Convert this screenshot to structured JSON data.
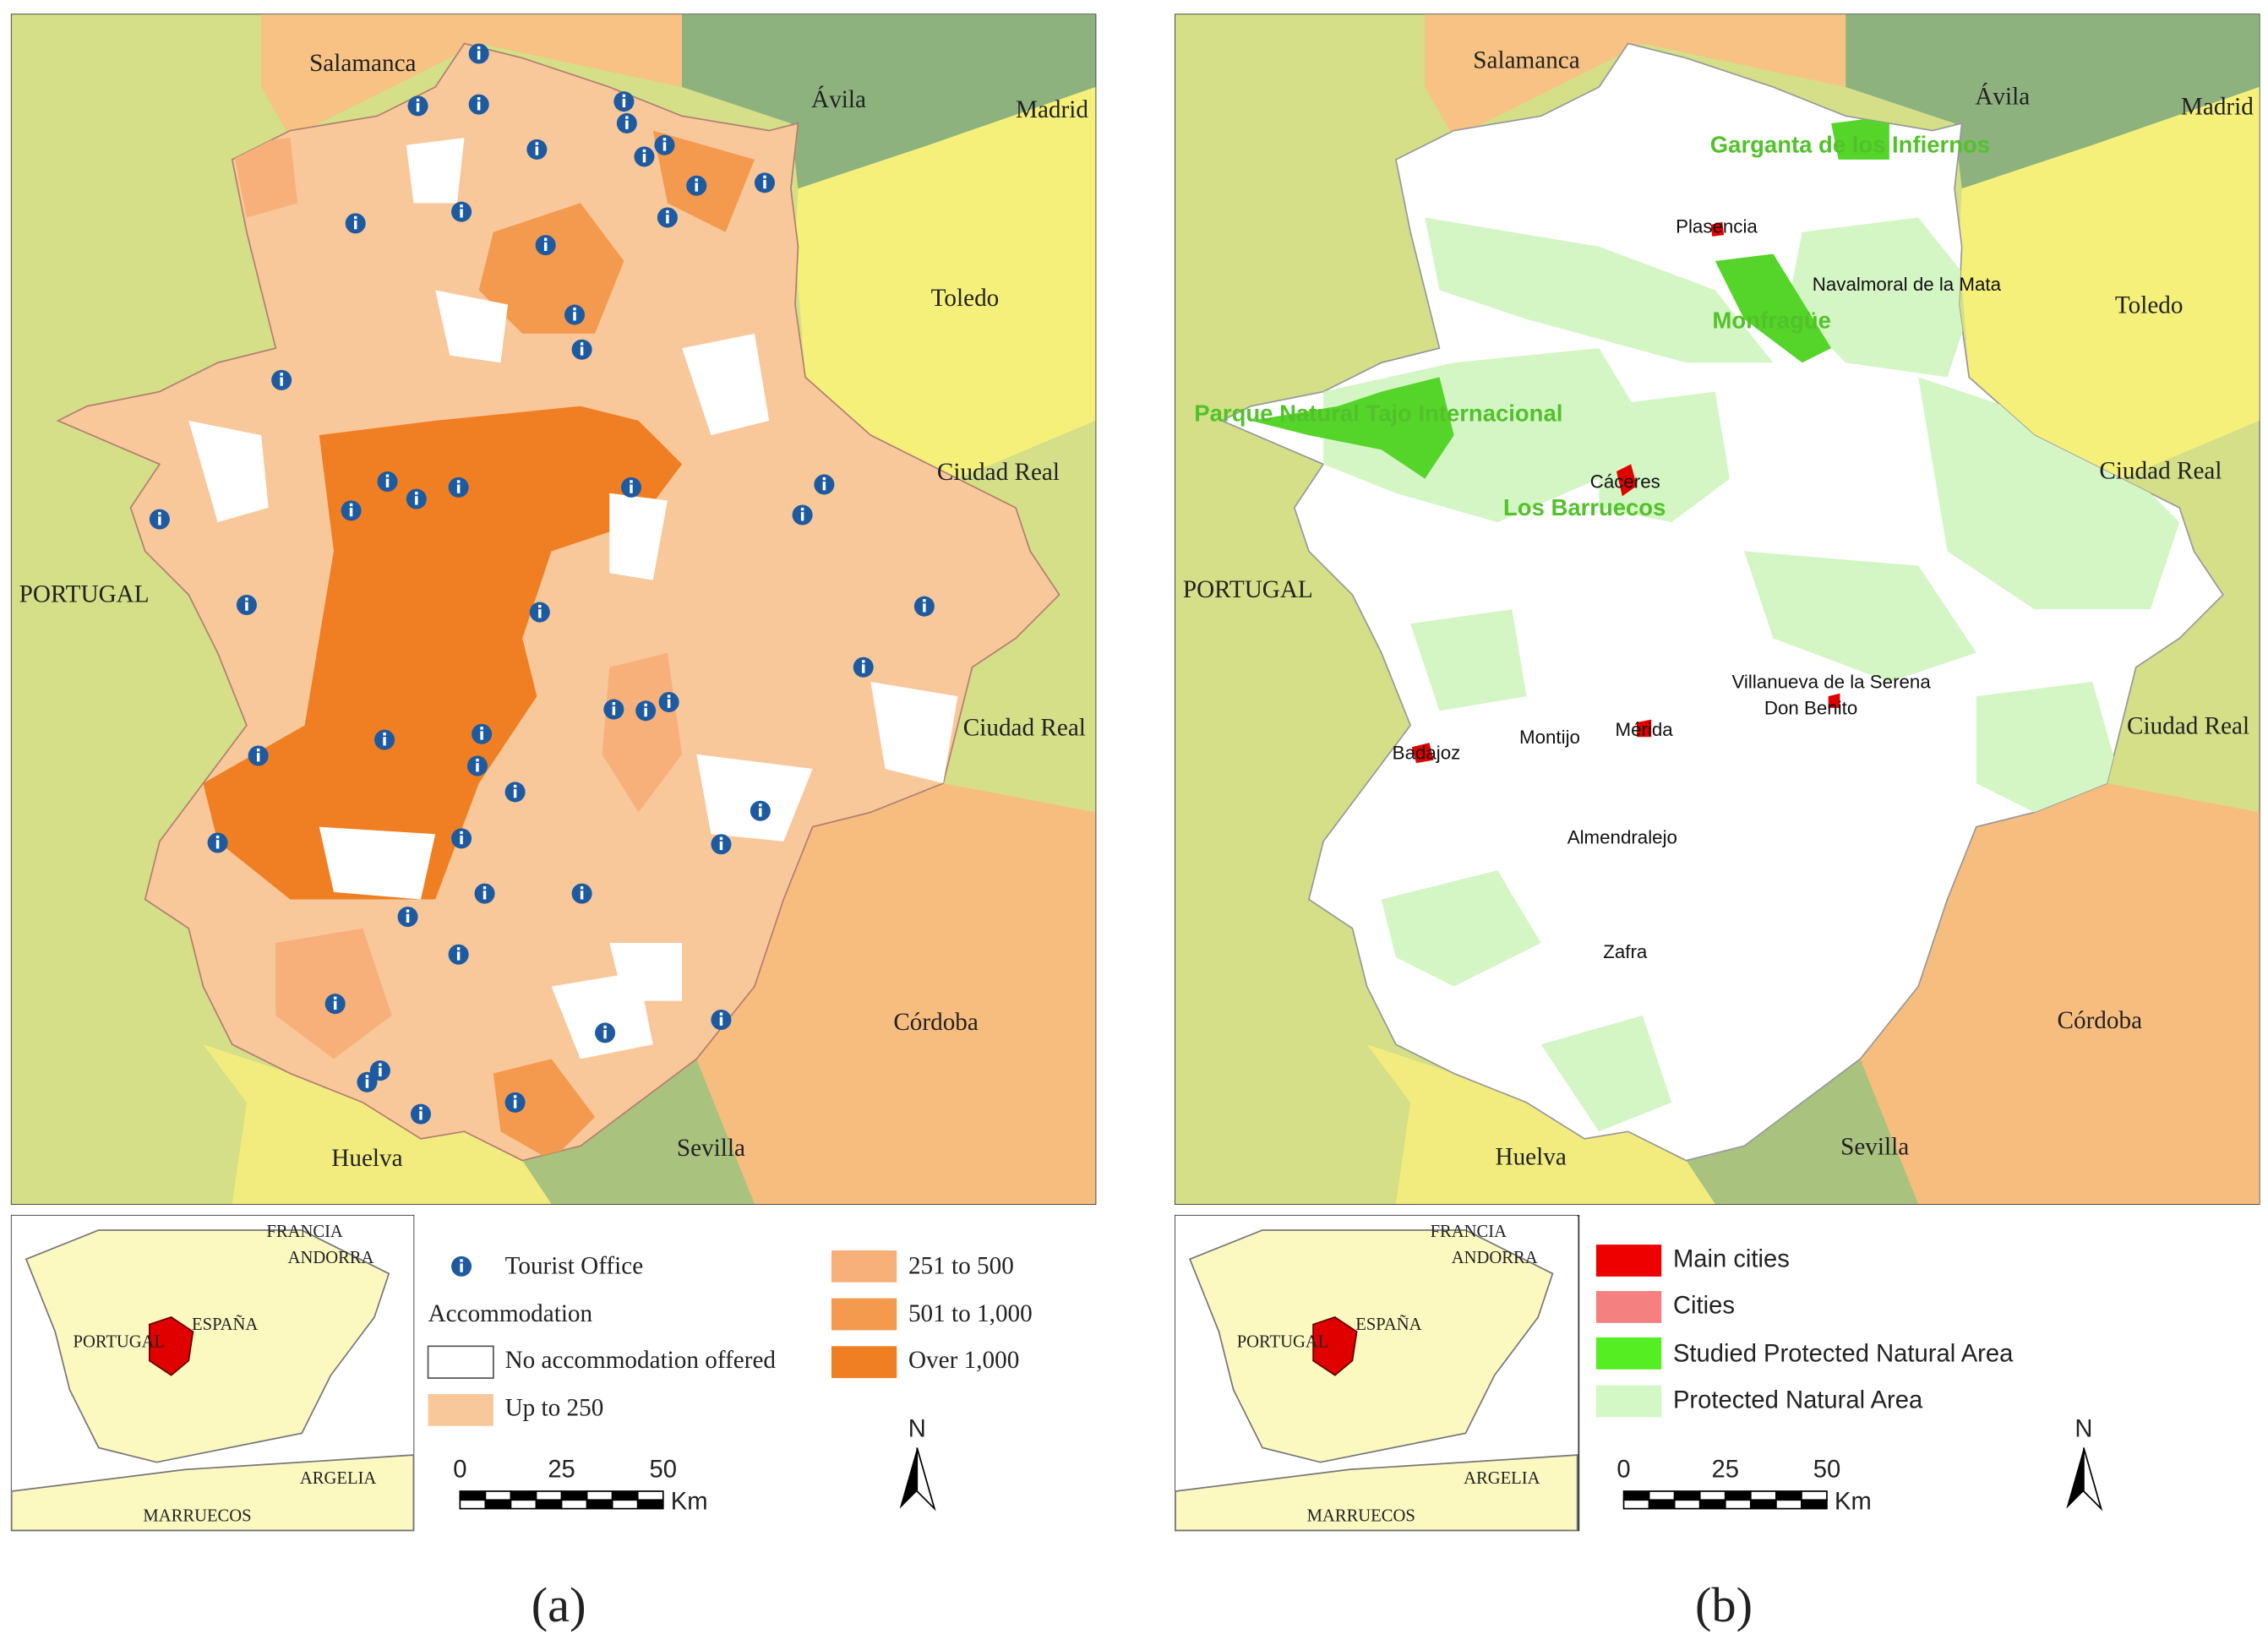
{
  "panels": [
    {
      "neighbors": [
        "Salamanca",
        "Ávila",
        "Madrid",
        "Toledo",
        "Ciudad Real",
        "PORTUGAL",
        "Ciudad Real",
        "Córdoba",
        "Sevilla",
        "Huelva"
      ],
      "inset_labels": [
        "FRANCIA",
        "ANDORRA",
        "ESPAÑA",
        "PORTUGAL",
        "ARGELIA",
        "MARRUECOS"
      ],
      "legend": {
        "tourist_office": "Tourist Office",
        "accommodation": "Accommodation",
        "classes": [
          "No accommodation offered",
          "Up to 250",
          "251 to 500",
          "501 to 1,000",
          "Over 1,000"
        ]
      },
      "scale": {
        "ticks": [
          "0",
          "25",
          "50"
        ],
        "unit": "Km"
      },
      "north": "N",
      "caption": "(a)"
    },
    {
      "neighbors": [
        "Salamanca",
        "Ávila",
        "Madrid",
        "Toledo",
        "Ciudad Real",
        "PORTUGAL",
        "Ciudad Real",
        "Córdoba",
        "Sevilla",
        "Huelva"
      ],
      "areas": [
        "Garganta de los Infiernos",
        "Monfragüe",
        "Parque Natural Tajo Internacional",
        "Los Barruecos"
      ],
      "cities": [
        "Plasencia",
        "Navalmoral de la Mata",
        "Cáceres",
        "Villanueva de la Serena",
        "Don Benito",
        "Badajoz",
        "Montijo",
        "Mérida",
        "Almendralejo",
        "Zafra"
      ],
      "inset_labels": [
        "FRANCIA",
        "ANDORRA",
        "ESPAÑA",
        "PORTUGAL",
        "ARGELIA",
        "MARRUECOS"
      ],
      "legend": {
        "classes": [
          "Main cities",
          "Cities",
          "Studied Protected Natural Area",
          "Protected Natural Area"
        ]
      },
      "scale": {
        "ticks": [
          "0",
          "25",
          "50"
        ],
        "unit": "Km"
      },
      "north": "N",
      "caption": "(b)"
    }
  ]
}
